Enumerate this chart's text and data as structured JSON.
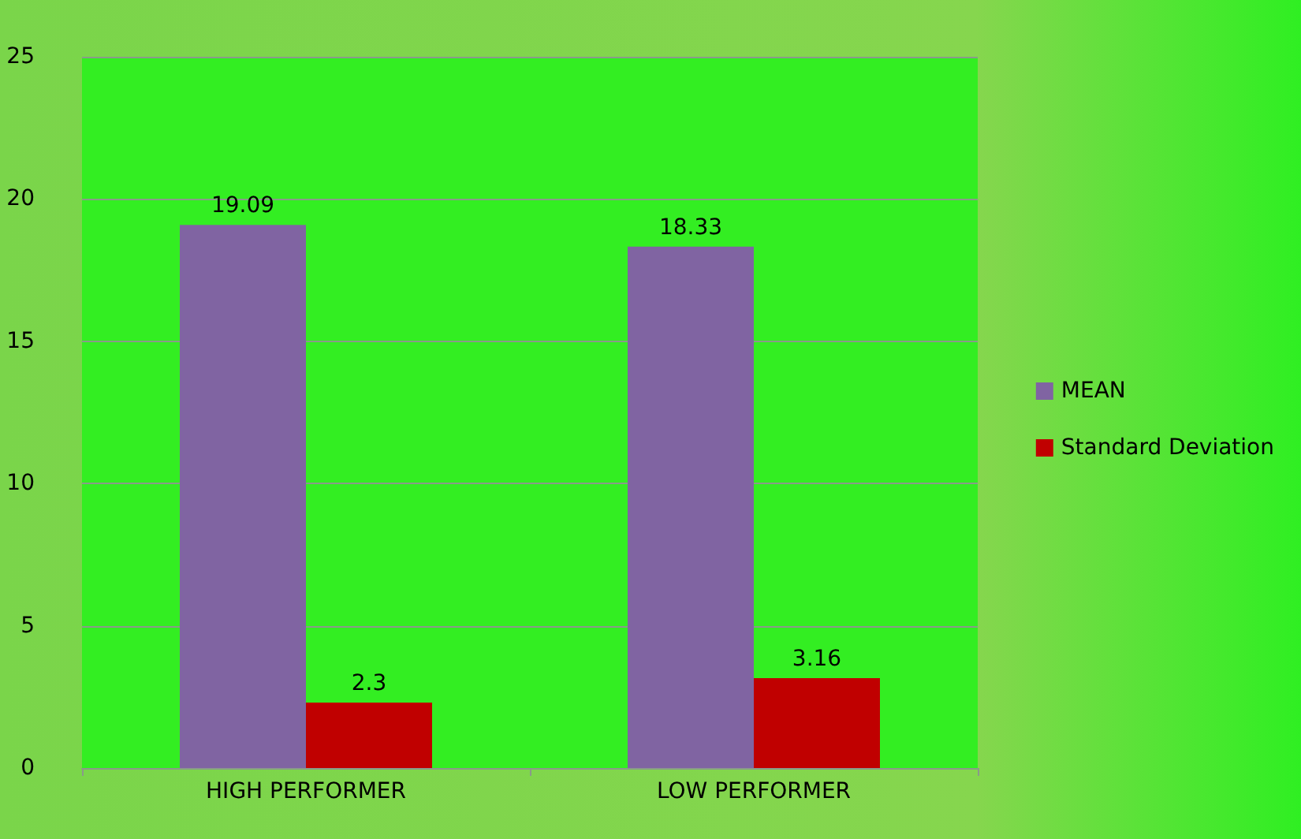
{
  "chart_data": {
    "type": "bar",
    "categories": [
      "HIGH PERFORMER",
      "LOW PERFORMER"
    ],
    "series": [
      {
        "name": "MEAN",
        "color": "#8064a2",
        "values": [
          19.09,
          18.33
        ]
      },
      {
        "name": "Standard Deviation",
        "color": "#c00000",
        "values": [
          2.3,
          3.16
        ]
      }
    ],
    "ylim": [
      0,
      25
    ],
    "yticks": [
      0,
      5,
      10,
      15,
      20,
      25
    ],
    "grid": "y",
    "legend": "right",
    "data_labels": true
  }
}
